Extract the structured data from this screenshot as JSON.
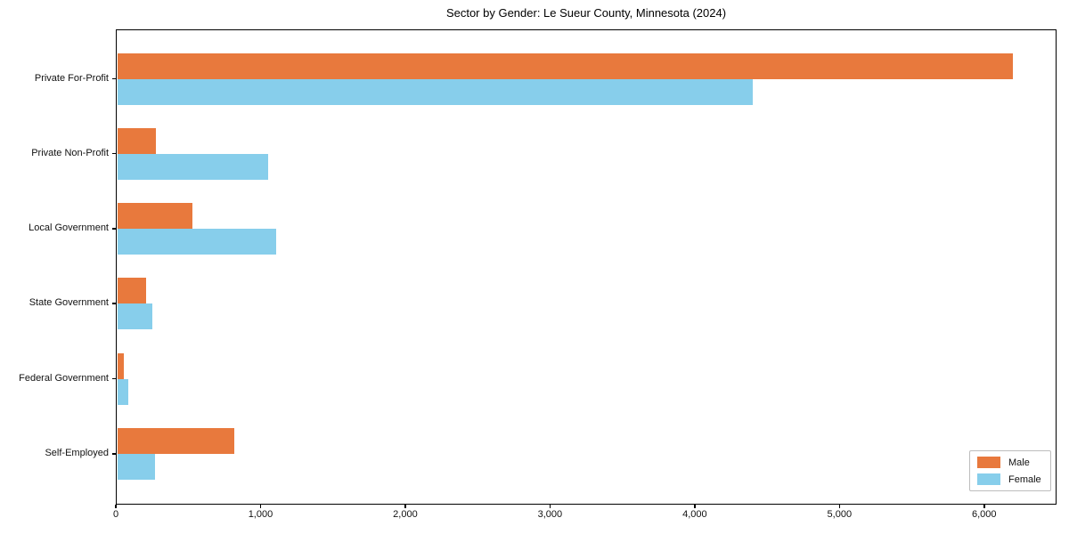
{
  "title": "Sector by Gender: Le Sueur County, Minnesota (2024)",
  "colors": {
    "male": "#e8793d",
    "female": "#87ceeb",
    "axis": "#000000",
    "legend_border": "#bdbdbd",
    "background": "#ffffff"
  },
  "chart_data": {
    "type": "bar",
    "orientation": "horizontal",
    "title": "Sector by Gender: Le Sueur County, Minnesota (2024)",
    "categories": [
      "Private For-Profit",
      "Private Non-Profit",
      "Local Government",
      "State Government",
      "Federal Government",
      "Self-Employed"
    ],
    "series": [
      {
        "name": "Male",
        "color": "#e8793d",
        "values": [
          6200,
          280,
          530,
          210,
          55,
          820
        ]
      },
      {
        "name": "Female",
        "color": "#87ceeb",
        "values": [
          4400,
          1050,
          1110,
          250,
          85,
          270
        ]
      }
    ],
    "xlabel": "",
    "ylabel": "",
    "xlim": [
      0,
      6500
    ],
    "xticks": [
      0,
      1000,
      2000,
      3000,
      4000,
      5000,
      6000
    ],
    "xtick_labels": [
      "0",
      "1,000",
      "2,000",
      "3,000",
      "4,000",
      "5,000",
      "6,000"
    ],
    "grid": false,
    "legend_position": "lower right"
  },
  "legend": {
    "items": [
      {
        "label": "Male"
      },
      {
        "label": "Female"
      }
    ]
  }
}
